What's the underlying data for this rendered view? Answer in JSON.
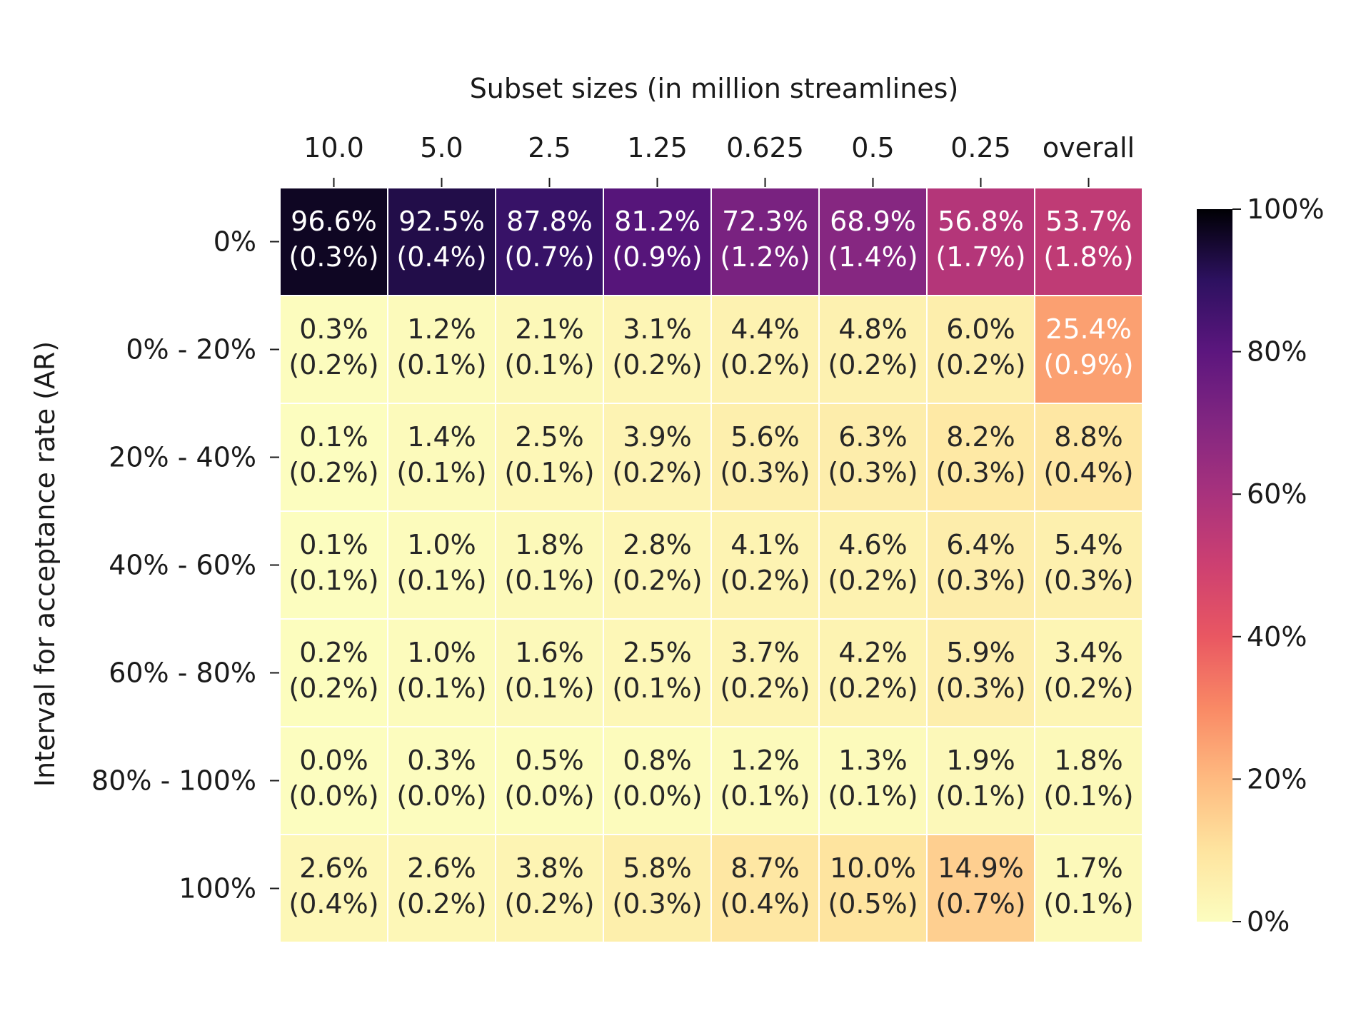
{
  "chart_data": {
    "type": "heatmap",
    "xlabel": "Subset sizes (in million streamlines)",
    "ylabel": "Interval for acceptance rate (AR)",
    "x_categories": [
      "10.0",
      "5.0",
      "2.5",
      "1.25",
      "0.625",
      "0.5",
      "0.25",
      "overall"
    ],
    "y_categories": [
      "0%",
      "0% - 20%",
      "20% - 40%",
      "40% - 60%",
      "60% - 80%",
      "80% - 100%",
      "100%"
    ],
    "values": [
      [
        96.6,
        92.5,
        87.8,
        81.2,
        72.3,
        68.9,
        56.8,
        53.7
      ],
      [
        0.3,
        1.2,
        2.1,
        3.1,
        4.4,
        4.8,
        6.0,
        25.4
      ],
      [
        0.1,
        1.4,
        2.5,
        3.9,
        5.6,
        6.3,
        8.2,
        8.8
      ],
      [
        0.1,
        1.0,
        1.8,
        2.8,
        4.1,
        4.6,
        6.4,
        5.4
      ],
      [
        0.2,
        1.0,
        1.6,
        2.5,
        3.7,
        4.2,
        5.9,
        3.4
      ],
      [
        0.0,
        0.3,
        0.5,
        0.8,
        1.2,
        1.3,
        1.9,
        1.8
      ],
      [
        2.6,
        2.6,
        3.8,
        5.8,
        8.7,
        10.0,
        14.9,
        1.7
      ]
    ],
    "labels": [
      [
        "96.6%",
        "92.5%",
        "87.8%",
        "81.2%",
        "72.3%",
        "68.9%",
        "56.8%",
        "53.7%"
      ],
      [
        "0.3%",
        "1.2%",
        "2.1%",
        "3.1%",
        "4.4%",
        "4.8%",
        "6.0%",
        "25.4%"
      ],
      [
        "0.1%",
        "1.4%",
        "2.5%",
        "3.9%",
        "5.6%",
        "6.3%",
        "8.2%",
        "8.8%"
      ],
      [
        "0.1%",
        "1.0%",
        "1.8%",
        "2.8%",
        "4.1%",
        "4.6%",
        "6.4%",
        "5.4%"
      ],
      [
        "0.2%",
        "1.0%",
        "1.6%",
        "2.5%",
        "3.7%",
        "4.2%",
        "5.9%",
        "3.4%"
      ],
      [
        "0.0%",
        "0.3%",
        "0.5%",
        "0.8%",
        "1.2%",
        "1.3%",
        "1.9%",
        "1.8%"
      ],
      [
        "2.6%",
        "2.6%",
        "3.8%",
        "5.8%",
        "8.7%",
        "10.0%",
        "14.9%",
        "1.7%"
      ]
    ],
    "std_labels": [
      [
        "(0.3%)",
        "(0.4%)",
        "(0.7%)",
        "(0.9%)",
        "(1.2%)",
        "(1.4%)",
        "(1.7%)",
        "(1.8%)"
      ],
      [
        "(0.2%)",
        "(0.1%)",
        "(0.1%)",
        "(0.2%)",
        "(0.2%)",
        "(0.2%)",
        "(0.2%)",
        "(0.9%)"
      ],
      [
        "(0.2%)",
        "(0.1%)",
        "(0.1%)",
        "(0.2%)",
        "(0.3%)",
        "(0.3%)",
        "(0.3%)",
        "(0.4%)"
      ],
      [
        "(0.1%)",
        "(0.1%)",
        "(0.1%)",
        "(0.2%)",
        "(0.2%)",
        "(0.2%)",
        "(0.3%)",
        "(0.3%)"
      ],
      [
        "(0.2%)",
        "(0.1%)",
        "(0.1%)",
        "(0.1%)",
        "(0.2%)",
        "(0.2%)",
        "(0.3%)",
        "(0.2%)"
      ],
      [
        "(0.0%)",
        "(0.0%)",
        "(0.0%)",
        "(0.0%)",
        "(0.1%)",
        "(0.1%)",
        "(0.1%)",
        "(0.1%)"
      ],
      [
        "(0.4%)",
        "(0.2%)",
        "(0.2%)",
        "(0.3%)",
        "(0.4%)",
        "(0.5%)",
        "(0.7%)",
        "(0.1%)"
      ]
    ],
    "colormap": "magma_r",
    "vmin": 0,
    "vmax": 100,
    "colorbar": {
      "ticks": [
        0,
        20,
        40,
        60,
        80,
        100
      ],
      "tick_labels": [
        "0%",
        "20%",
        "40%",
        "60%",
        "80%",
        "100%"
      ]
    },
    "x_axis_position": "top",
    "grid": false,
    "cell_border_color": "#ffffff"
  }
}
